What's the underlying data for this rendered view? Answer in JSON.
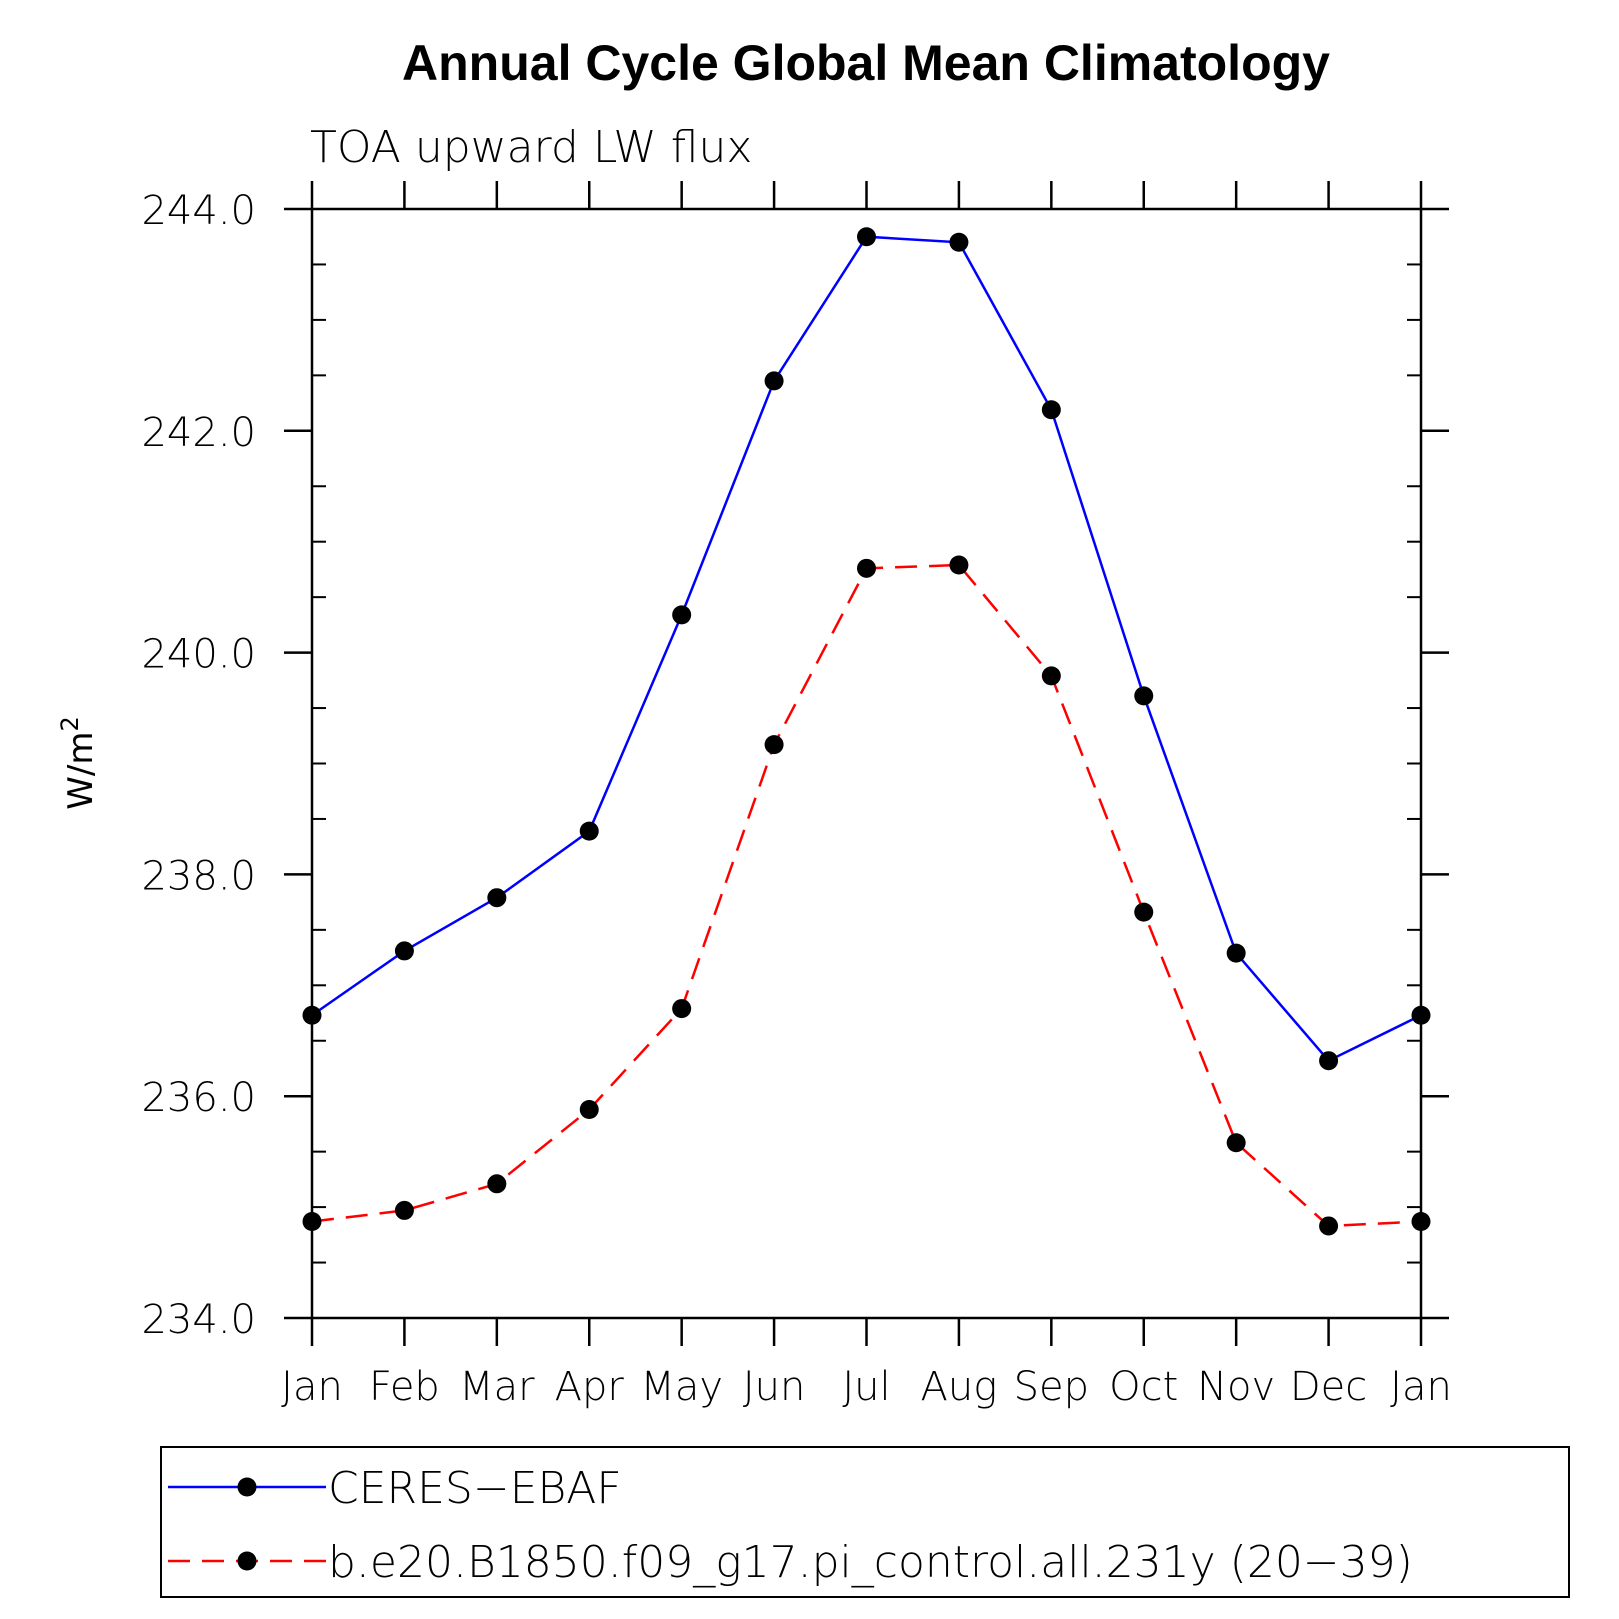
{
  "chart_data": {
    "type": "line",
    "title": "Annual Cycle Global Mean Climatology",
    "subtitle": "TOA upward LW flux",
    "ylabel": "W/m",
    "ylabel_superscript": "2",
    "categories": [
      "Jan",
      "Feb",
      "Mar",
      "Apr",
      "May",
      "Jun",
      "Jul",
      "Aug",
      "Sep",
      "Oct",
      "Nov",
      "Dec",
      "Jan"
    ],
    "ylim": [
      234.0,
      244.0
    ],
    "yticks": [
      "234.0",
      "236.0",
      "238.0",
      "240.0",
      "242.0",
      "244.0"
    ],
    "grid": false,
    "legend_position": "bottom",
    "series": [
      {
        "name": "CERES−EBAF",
        "color": "#0000ff",
        "dash": "solid",
        "marker": "filled-circle",
        "values": [
          236.73,
          237.31,
          237.79,
          238.39,
          240.34,
          242.45,
          243.75,
          243.7,
          242.19,
          239.61,
          237.29,
          236.32,
          236.73
        ]
      },
      {
        "name": "b.e20.B1850.f09_g17.pi_control.all.231y (20−39)",
        "color": "#ff0000",
        "dash": "dashed",
        "marker": "filled-circle",
        "values": [
          234.87,
          234.97,
          235.21,
          235.88,
          236.79,
          239.17,
          240.76,
          240.79,
          239.79,
          237.66,
          235.58,
          234.83,
          234.87
        ]
      }
    ]
  }
}
